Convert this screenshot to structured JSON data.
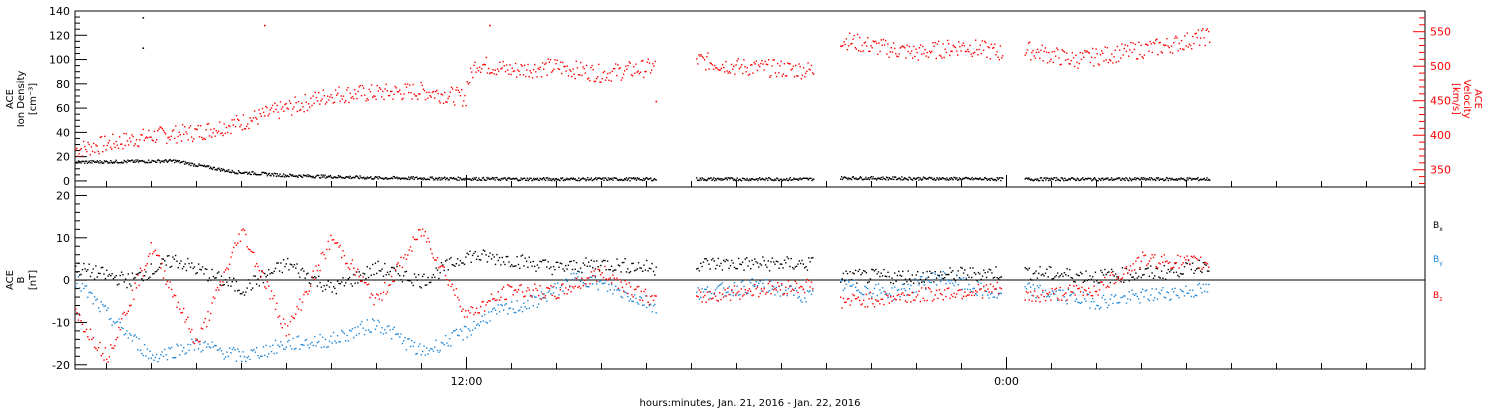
{
  "chart_data": [
    {
      "type": "scatter",
      "panel": "top",
      "ylabel_left": [
        "ACE",
        "Ion Density",
        "[cm⁻³]"
      ],
      "ylabel_right": [
        "ACE",
        "Velocity",
        "[km/s]"
      ],
      "x_unit": "hours since 2016-01-21 00:00",
      "xlim": [
        3.3,
        33.3
      ],
      "ylim_left": [
        -5,
        140
      ],
      "ylim_right": [
        325,
        580
      ],
      "yticks_left": [
        0,
        20,
        40,
        60,
        80,
        100,
        120,
        140
      ],
      "yticks_right": [
        350,
        400,
        450,
        500,
        550
      ],
      "colors": {
        "density": "#000000",
        "velocity": "#ff0000"
      },
      "segments": [
        [
          3.3,
          16.2
        ],
        [
          17.1,
          19.7
        ],
        [
          20.3,
          23.9
        ],
        [
          24.4,
          28.5
        ]
      ],
      "density_profile": [
        [
          3.3,
          16
        ],
        [
          5.5,
          17
        ],
        [
          6.8,
          8
        ],
        [
          8,
          5
        ],
        [
          10,
          3
        ],
        [
          13,
          2
        ],
        [
          16.2,
          2
        ],
        [
          17.1,
          2
        ],
        [
          19.7,
          2
        ],
        [
          20.3,
          3
        ],
        [
          23.9,
          2
        ],
        [
          24.4,
          2
        ],
        [
          28.5,
          2
        ]
      ],
      "density_outliers": [
        [
          4.8,
          135
        ],
        [
          4.8,
          110
        ]
      ],
      "velocity_profile": [
        [
          3.3,
          380
        ],
        [
          5,
          400
        ],
        [
          6,
          405
        ],
        [
          7,
          420
        ],
        [
          8,
          440
        ],
        [
          9,
          460
        ],
        [
          10,
          462
        ],
        [
          11,
          465
        ],
        [
          12,
          455
        ],
        [
          11.9,
          460
        ],
        [
          12.2,
          505
        ],
        [
          13,
          495
        ],
        [
          14,
          500
        ],
        [
          15,
          490
        ],
        [
          16.2,
          500
        ],
        [
          17.1,
          510
        ],
        [
          18,
          500
        ],
        [
          19.7,
          495
        ],
        [
          20.3,
          540
        ],
        [
          21,
          530
        ],
        [
          22,
          520
        ],
        [
          23,
          530
        ],
        [
          23.9,
          520
        ],
        [
          24.4,
          525
        ],
        [
          25.5,
          510
        ],
        [
          26.5,
          520
        ],
        [
          27.5,
          530
        ],
        [
          28.5,
          545
        ]
      ],
      "velocity_outliers": [
        [
          7.5,
          560
        ],
        [
          16.2,
          450
        ],
        [
          12.5,
          560
        ]
      ]
    },
    {
      "type": "scatter",
      "panel": "bottom",
      "ylabel_left": [
        "ACE",
        "B",
        "[nT]"
      ],
      "ylim": [
        -21,
        22
      ],
      "yticks": [
        -20,
        -10,
        0,
        10,
        20
      ],
      "xticks": [
        {
          "label": "12:00",
          "hours": 12
        },
        {
          "label": "0:00",
          "hours": 24
        }
      ],
      "xlabel": "hours:minutes, Jan. 21, 2016 - Jan. 22, 2016",
      "series": [
        {
          "name": "Bx",
          "color": "#000000",
          "profile": [
            [
              3.3,
              3
            ],
            [
              4.5,
              0
            ],
            [
              5.5,
              5
            ],
            [
              7,
              -2
            ],
            [
              8,
              4
            ],
            [
              9,
              -2
            ],
            [
              10,
              3
            ],
            [
              11,
              0
            ],
            [
              12,
              6
            ],
            [
              13,
              5
            ],
            [
              14,
              3
            ],
            [
              15,
              4
            ],
            [
              16.2,
              3
            ],
            [
              17.1,
              4
            ],
            [
              19.7,
              4
            ],
            [
              20.3,
              1
            ],
            [
              22,
              1
            ],
            [
              23.9,
              2
            ],
            [
              24.4,
              2
            ],
            [
              26,
              1
            ],
            [
              27.5,
              2
            ],
            [
              28.5,
              4
            ]
          ]
        },
        {
          "name": "By",
          "color": "#1f86d6",
          "profile": [
            [
              3.3,
              0
            ],
            [
              4,
              -8
            ],
            [
              5,
              -18
            ],
            [
              6,
              -15
            ],
            [
              7,
              -18
            ],
            [
              8,
              -15
            ],
            [
              9,
              -14
            ],
            [
              10,
              -10
            ],
            [
              11,
              -17
            ],
            [
              12,
              -12
            ],
            [
              12.5,
              -8
            ],
            [
              13.5,
              -5
            ],
            [
              14.5,
              1
            ],
            [
              15.5,
              -3
            ],
            [
              16.2,
              -6
            ],
            [
              17.1,
              -3
            ],
            [
              18.5,
              -1
            ],
            [
              19.7,
              -4
            ],
            [
              20.3,
              -1
            ],
            [
              21.5,
              -3
            ],
            [
              22.5,
              1
            ],
            [
              23.9,
              -4
            ],
            [
              24.4,
              -2
            ],
            [
              26,
              -5
            ],
            [
              27.5,
              -3
            ],
            [
              28.5,
              -2
            ]
          ]
        },
        {
          "name": "Bz",
          "color": "#ff0000",
          "profile": [
            [
              3.3,
              -8
            ],
            [
              4,
              -18
            ],
            [
              5,
              8
            ],
            [
              6,
              -15
            ],
            [
              7,
              12
            ],
            [
              8,
              -12
            ],
            [
              9,
              10
            ],
            [
              10,
              -5
            ],
            [
              11,
              12
            ],
            [
              12,
              -8
            ],
            [
              13,
              -2
            ],
            [
              14,
              -3
            ],
            [
              15,
              2
            ],
            [
              16.2,
              -5
            ],
            [
              17.1,
              -4
            ],
            [
              18.5,
              -2
            ],
            [
              19.7,
              -1
            ],
            [
              20.3,
              -5
            ],
            [
              21.5,
              -4
            ],
            [
              22.5,
              -3
            ],
            [
              23.9,
              -2
            ],
            [
              24.4,
              -4
            ],
            [
              26,
              -2
            ],
            [
              27,
              5
            ],
            [
              28.5,
              4
            ]
          ]
        }
      ]
    }
  ]
}
